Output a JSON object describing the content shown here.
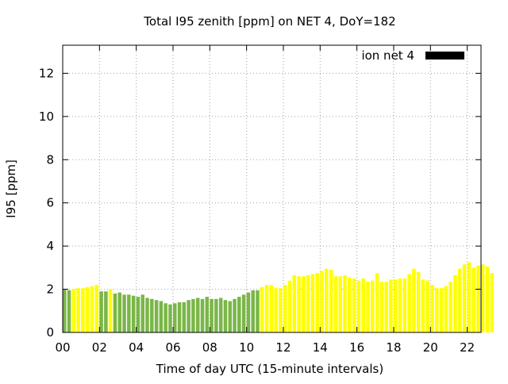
{
  "chart_data": {
    "type": "bar",
    "title": "Total I95 zenith [ppm] on NET 4, DoY=182",
    "xlabel": "Time of day UTC (15-minute intervals)",
    "ylabel": "I95 [ppm]",
    "legend": {
      "label": "ion net 4",
      "position": "top-right",
      "color": "#000000"
    },
    "xlim": [
      0,
      22.75
    ],
    "ylim": [
      0,
      13.3
    ],
    "x_ticks": [
      {
        "v": 0,
        "label": "00"
      },
      {
        "v": 2,
        "label": "02"
      },
      {
        "v": 4,
        "label": "04"
      },
      {
        "v": 6,
        "label": "06"
      },
      {
        "v": 8,
        "label": "08"
      },
      {
        "v": 10,
        "label": "10"
      },
      {
        "v": 12,
        "label": "12"
      },
      {
        "v": 14,
        "label": "14"
      },
      {
        "v": 16,
        "label": "16"
      },
      {
        "v": 18,
        "label": "18"
      },
      {
        "v": 20,
        "label": "20"
      },
      {
        "v": 22,
        "label": "22"
      }
    ],
    "y_ticks": [
      {
        "v": 0,
        "label": "0"
      },
      {
        "v": 2,
        "label": "2"
      },
      {
        "v": 4,
        "label": "4"
      },
      {
        "v": 6,
        "label": "6"
      },
      {
        "v": 8,
        "label": "8"
      },
      {
        "v": 10,
        "label": "10"
      },
      {
        "v": 12,
        "label": "12"
      }
    ],
    "grid": true,
    "colors": {
      "green": "#7ab648",
      "yellow": "#ffff00"
    },
    "bar_interval_hours": 0.25,
    "values": [
      2.0,
      1.95,
      2.0,
      2.05,
      2.05,
      2.1,
      2.15,
      2.2,
      1.9,
      1.9,
      2.0,
      1.8,
      1.85,
      1.75,
      1.75,
      1.7,
      1.65,
      1.75,
      1.6,
      1.55,
      1.5,
      1.45,
      1.35,
      1.3,
      1.35,
      1.4,
      1.4,
      1.5,
      1.55,
      1.6,
      1.55,
      1.65,
      1.55,
      1.55,
      1.6,
      1.5,
      1.45,
      1.55,
      1.65,
      1.75,
      1.85,
      1.95,
      1.95,
      2.1,
      2.2,
      2.2,
      2.05,
      2.05,
      2.2,
      2.4,
      2.65,
      2.6,
      2.6,
      2.65,
      2.7,
      2.75,
      2.85,
      2.95,
      2.9,
      2.6,
      2.6,
      2.65,
      2.55,
      2.5,
      2.4,
      2.5,
      2.35,
      2.4,
      2.75,
      2.35,
      2.35,
      2.45,
      2.45,
      2.5,
      2.5,
      2.7,
      2.95,
      2.8,
      2.45,
      2.4,
      2.2,
      2.05,
      2.05,
      2.15,
      2.35,
      2.65,
      2.95,
      3.15,
      3.25,
      3.0,
      3.1,
      3.15,
      3.05,
      2.75
    ],
    "colors_per_bar": [
      "green",
      "green",
      "yellow",
      "yellow",
      "yellow",
      "yellow",
      "yellow",
      "yellow",
      "green",
      "green",
      "yellow",
      "green",
      "green",
      "green",
      "green",
      "green",
      "green",
      "green",
      "green",
      "green",
      "green",
      "green",
      "green",
      "green",
      "green",
      "green",
      "green",
      "green",
      "green",
      "green",
      "green",
      "green",
      "green",
      "green",
      "green",
      "green",
      "green",
      "green",
      "green",
      "green",
      "green",
      "green",
      "green",
      "yellow",
      "yellow",
      "yellow",
      "yellow",
      "yellow",
      "yellow",
      "yellow",
      "yellow",
      "yellow",
      "yellow",
      "yellow",
      "yellow",
      "yellow",
      "yellow",
      "yellow",
      "yellow",
      "yellow",
      "yellow",
      "yellow",
      "yellow",
      "yellow",
      "yellow",
      "yellow",
      "yellow",
      "yellow",
      "yellow",
      "yellow",
      "yellow",
      "yellow",
      "yellow",
      "yellow",
      "yellow",
      "yellow",
      "yellow",
      "yellow",
      "yellow",
      "yellow",
      "yellow",
      "yellow",
      "yellow",
      "yellow",
      "yellow",
      "yellow",
      "yellow",
      "yellow",
      "yellow",
      "yellow",
      "yellow",
      "yellow",
      "yellow",
      "yellow"
    ]
  }
}
